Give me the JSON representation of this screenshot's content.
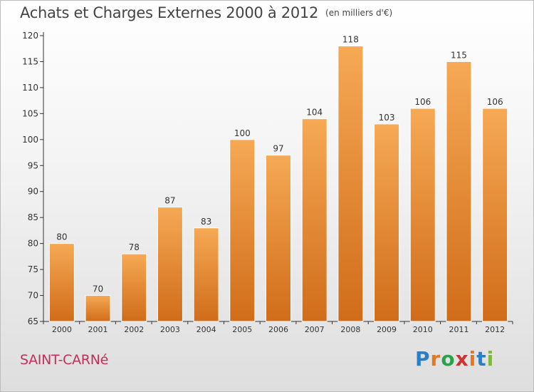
{
  "title": "Achats et Charges Externes 2000 à 2012",
  "unit": "(en milliers d'€)",
  "commune": "SAINT-CARNé",
  "brand": {
    "letters": [
      "P",
      "r",
      "o",
      "x",
      "i",
      "t",
      "i"
    ],
    "colors": [
      "#2c7fc7",
      "#e8761d",
      "#2ba24a",
      "#c9352f",
      "#e8761d",
      "#2c7fc7",
      "#7fb83b"
    ]
  },
  "colors": {
    "bar_light": "#f6a954",
    "bar_dark": "#d06c1a",
    "axis": "#333333",
    "grid": "#d0d0d0"
  },
  "chart_data": {
    "type": "bar",
    "categories": [
      "2000",
      "2001",
      "2002",
      "2003",
      "2004",
      "2005",
      "2006",
      "2007",
      "2008",
      "2009",
      "2010",
      "2011",
      "2012"
    ],
    "values": [
      80,
      70,
      78,
      87,
      83,
      100,
      97,
      104,
      118,
      103,
      106,
      115,
      106
    ],
    "ylim": [
      65,
      120
    ],
    "yticks": [
      65,
      70,
      75,
      80,
      85,
      90,
      95,
      100,
      105,
      110,
      115,
      120
    ],
    "grid": false,
    "show_value_labels": true
  }
}
